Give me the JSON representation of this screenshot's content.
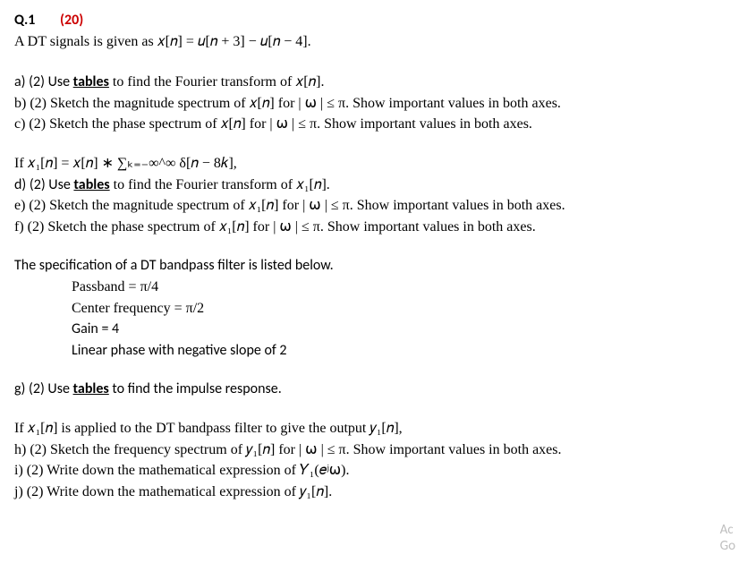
{
  "header": {
    "number": "Q.1",
    "points": "(20)"
  },
  "intro": "A DT signals is given as 𝑥[𝑛] = 𝑢[𝑛 + 3] − 𝑢[𝑛 − 4].",
  "parts_abc": {
    "a": "a) (2) Use ",
    "a_bold": "tables",
    "a_rest": " to find the Fourier transform of 𝑥[𝑛].",
    "b": "b) (2) Sketch the magnitude spectrum of 𝑥[𝑛] for | ⍵ | ≤ π. Show important values in both axes.",
    "c": "c) (2) Sketch the phase spectrum of 𝑥[𝑛] for | ⍵ | ≤ π. Show important values in both axes."
  },
  "x1_def": "If 𝑥₁[𝑛] = 𝑥[𝑛] ∗ ∑ₖ₌₋∞^∞ δ[𝑛 − 8𝑘],",
  "parts_def": {
    "d": "d) (2) Use ",
    "d_bold": "tables",
    "d_rest": " to find the Fourier transform of 𝑥₁[𝑛].",
    "e": "e) (2) Sketch the magnitude spectrum of 𝑥₁[𝑛]  for | ⍵ | ≤ π. Show important values in both axes.",
    "f": "f) (2) Sketch the phase spectrum of 𝑥₁[𝑛]  for | ⍵ | ≤ π. Show important values in both axes."
  },
  "filter": {
    "intro": "The specification of a DT bandpass filter is listed below.",
    "spec1": "Passband = π/4",
    "spec2": "Center frequency = π/2",
    "spec3": "Gain = 4",
    "spec4": "Linear phase with negative slope of 2"
  },
  "part_g": {
    "g": "g) (2) Use ",
    "g_bold": "tables",
    "g_rest": " to find the impulse response."
  },
  "y1_intro": "If 𝑥₁[𝑛] is applied to the DT bandpass filter to give the output 𝑦₁[𝑛],",
  "parts_hij": {
    "h": "h) (2) Sketch the frequency spectrum of 𝑦₁[𝑛]  for | ⍵ | ≤ π. Show important values in both axes.",
    "i": "i) (2) Write down the mathematical expression of 𝑌₁(𝑒ʲ⍵).",
    "j": "j) (2) Write down the mathematical expression of 𝑦₁[𝑛]."
  },
  "watermark": {
    "line1": "Ac",
    "line2": "Go"
  }
}
